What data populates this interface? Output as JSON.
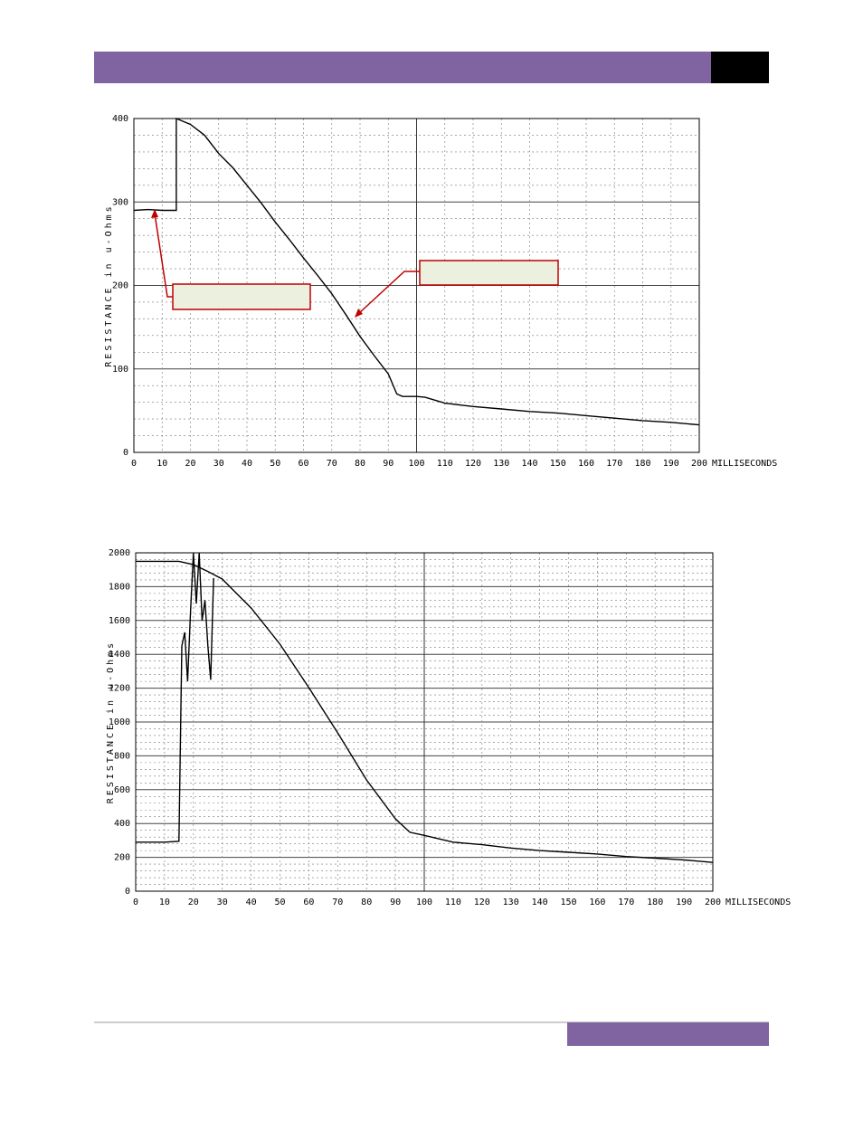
{
  "chart_data": [
    {
      "type": "line",
      "y_label": "RESISTANCE in u-Ohms",
      "x_label": "MILLISECONDS",
      "xlim": [
        0,
        200
      ],
      "ylim": [
        0,
        400
      ],
      "xticks": [
        0,
        10,
        20,
        30,
        40,
        50,
        60,
        70,
        80,
        90,
        100,
        110,
        120,
        130,
        140,
        150,
        160,
        170,
        180,
        190,
        200
      ],
      "yticks": [
        0,
        100,
        200,
        300,
        400
      ],
      "grid": true,
      "series": [
        {
          "color": "#000000",
          "x": [
            0,
            5,
            10,
            15,
            15,
            20,
            25,
            30,
            35,
            40,
            45,
            50,
            55,
            60,
            65,
            70,
            75,
            80,
            85,
            90,
            93,
            95,
            100,
            103,
            110,
            120,
            130,
            140,
            150,
            160,
            170,
            180,
            190,
            200
          ],
          "values": [
            290,
            291,
            290,
            290,
            400,
            393,
            380,
            358,
            341,
            320,
            299,
            276,
            255,
            233,
            212,
            190,
            165,
            139,
            116,
            94,
            70,
            67,
            67,
            66,
            59,
            55,
            52,
            49,
            47,
            44,
            41,
            38,
            36,
            33
          ]
        }
      ]
    },
    {
      "type": "line",
      "y_label": "RESISTANCE in u-Ohms",
      "x_label": "MILLISECONDS",
      "xlim": [
        0,
        200
      ],
      "ylim": [
        0,
        2000
      ],
      "xticks": [
        0,
        10,
        20,
        30,
        40,
        50,
        60,
        70,
        80,
        90,
        100,
        110,
        120,
        130,
        140,
        150,
        160,
        170,
        180,
        190,
        200
      ],
      "yticks": [
        0,
        200,
        400,
        600,
        800,
        1000,
        1200,
        1400,
        1600,
        1800,
        2000
      ],
      "grid": true,
      "series": [
        {
          "color": "#000000",
          "x": [
            0,
            10,
            15,
            16,
            17,
            18,
            19,
            20,
            21,
            22,
            23,
            24,
            25,
            26,
            27
          ],
          "values": [
            290,
            290,
            295,
            1450,
            1530,
            1240,
            1650,
            2000,
            1700,
            2000,
            1600,
            1720,
            1450,
            1250,
            1850
          ]
        },
        {
          "color": "#000000",
          "x": [
            0,
            15,
            20,
            25,
            30,
            40,
            50,
            60,
            70,
            80,
            90,
            95,
            100,
            110,
            120,
            130,
            140,
            150,
            160,
            170,
            180,
            190,
            200
          ],
          "values": [
            1950,
            1950,
            1930,
            1890,
            1845,
            1674,
            1460,
            1203,
            936,
            658,
            428,
            348,
            330,
            290,
            275,
            255,
            240,
            230,
            220,
            205,
            195,
            185,
            170
          ]
        }
      ]
    }
  ]
}
